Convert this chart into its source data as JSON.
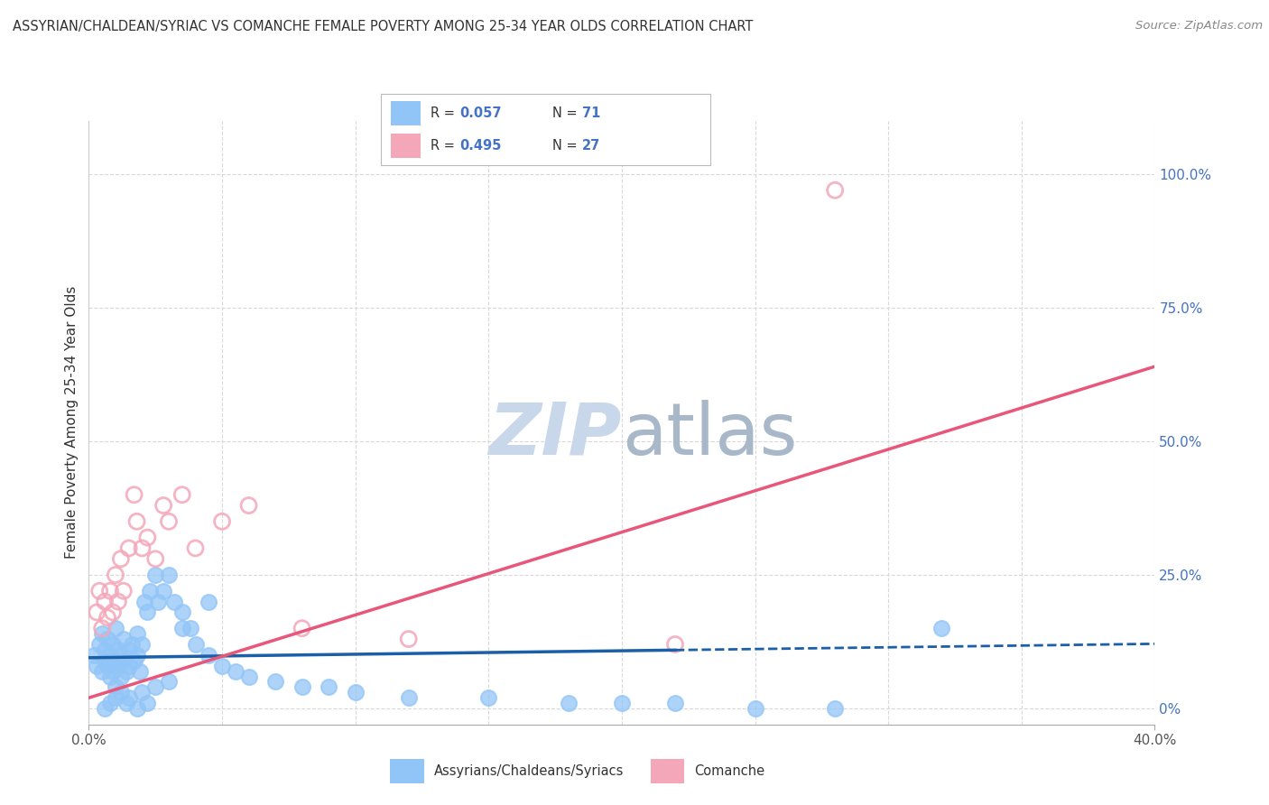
{
  "title": "ASSYRIAN/CHALDEAN/SYRIAC VS COMANCHE FEMALE POVERTY AMONG 25-34 YEAR OLDS CORRELATION CHART",
  "source": "Source: ZipAtlas.com",
  "ylabel": "Female Poverty Among 25-34 Year Olds",
  "xlim": [
    0.0,
    0.4
  ],
  "ylim": [
    -0.03,
    1.1
  ],
  "right_ytick_values": [
    0.0,
    0.25,
    0.5,
    0.75,
    1.0
  ],
  "right_ytick_labels": [
    "0%",
    "25.0%",
    "50.0%",
    "75.0%",
    "100.0%"
  ],
  "xtick_values": [
    0.0,
    0.4
  ],
  "xtick_labels": [
    "0.0%",
    "40.0%"
  ],
  "legend_r1": "0.057",
  "legend_n1": "71",
  "legend_r2": "0.495",
  "legend_n2": "27",
  "blue_color": "#92c5f7",
  "pink_color": "#f4a7b9",
  "blue_line_color": "#1a5fa8",
  "pink_line_color": "#e8567a",
  "grid_color": "#d9d9d9",
  "watermark_color": "#c8d8ea",
  "background_color": "#ffffff",
  "blue_label": "Assyrians/Chaldeans/Syriacs",
  "pink_label": "Comanche",
  "blue_trend_solid_end": 0.22,
  "blue_trend_intercept": 0.095,
  "blue_trend_slope": 0.065,
  "pink_trend_intercept": 0.02,
  "pink_trend_slope": 1.55,
  "blue_x": [
    0.002,
    0.003,
    0.004,
    0.005,
    0.005,
    0.006,
    0.006,
    0.007,
    0.007,
    0.008,
    0.008,
    0.009,
    0.009,
    0.01,
    0.01,
    0.011,
    0.011,
    0.012,
    0.012,
    0.013,
    0.013,
    0.014,
    0.015,
    0.015,
    0.016,
    0.017,
    0.018,
    0.018,
    0.019,
    0.02,
    0.021,
    0.022,
    0.023,
    0.025,
    0.026,
    0.028,
    0.03,
    0.032,
    0.035,
    0.038,
    0.04,
    0.045,
    0.05,
    0.055,
    0.06,
    0.07,
    0.08,
    0.09,
    0.1,
    0.12,
    0.15,
    0.18,
    0.2,
    0.22,
    0.25,
    0.28,
    0.01,
    0.012,
    0.015,
    0.02,
    0.025,
    0.03,
    0.006,
    0.008,
    0.01,
    0.014,
    0.018,
    0.022,
    0.035,
    0.045,
    0.32
  ],
  "blue_y": [
    0.1,
    0.08,
    0.12,
    0.07,
    0.14,
    0.09,
    0.11,
    0.08,
    0.13,
    0.06,
    0.1,
    0.12,
    0.07,
    0.09,
    0.15,
    0.08,
    0.11,
    0.1,
    0.06,
    0.09,
    0.13,
    0.07,
    0.11,
    0.08,
    0.12,
    0.09,
    0.1,
    0.14,
    0.07,
    0.12,
    0.2,
    0.18,
    0.22,
    0.25,
    0.2,
    0.22,
    0.25,
    0.2,
    0.18,
    0.15,
    0.12,
    0.1,
    0.08,
    0.07,
    0.06,
    0.05,
    0.04,
    0.04,
    0.03,
    0.02,
    0.02,
    0.01,
    0.01,
    0.01,
    0.0,
    0.0,
    0.04,
    0.03,
    0.02,
    0.03,
    0.04,
    0.05,
    0.0,
    0.01,
    0.02,
    0.01,
    0.0,
    0.01,
    0.15,
    0.2,
    0.15
  ],
  "pink_x": [
    0.003,
    0.004,
    0.005,
    0.006,
    0.007,
    0.008,
    0.009,
    0.01,
    0.011,
    0.012,
    0.013,
    0.015,
    0.017,
    0.018,
    0.02,
    0.022,
    0.025,
    0.028,
    0.03,
    0.035,
    0.04,
    0.05,
    0.06,
    0.08,
    0.12,
    0.22,
    0.28
  ],
  "pink_y": [
    0.18,
    0.22,
    0.15,
    0.2,
    0.17,
    0.22,
    0.18,
    0.25,
    0.2,
    0.28,
    0.22,
    0.3,
    0.4,
    0.35,
    0.3,
    0.32,
    0.28,
    0.38,
    0.35,
    0.4,
    0.3,
    0.35,
    0.38,
    0.15,
    0.13,
    0.12,
    0.97
  ]
}
